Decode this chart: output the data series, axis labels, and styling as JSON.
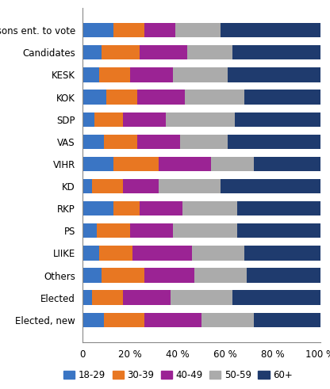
{
  "categories": [
    "Persons ent. to vote",
    "Candidates",
    "KESK",
    "KOK",
    "SDP",
    "VAS",
    "VIHR",
    "KD",
    "RKP",
    "PS",
    "LIIKE",
    "Others",
    "Elected",
    "Elected, new"
  ],
  "segments": {
    "18-29": [
      13,
      8,
      7,
      10,
      5,
      9,
      13,
      4,
      13,
      6,
      7,
      8,
      4,
      9
    ],
    "30-39": [
      13,
      16,
      13,
      13,
      12,
      14,
      19,
      13,
      11,
      14,
      14,
      18,
      13,
      17
    ],
    "40-49": [
      13,
      20,
      18,
      20,
      18,
      18,
      22,
      15,
      18,
      18,
      25,
      21,
      20,
      24
    ],
    "50-59": [
      19,
      19,
      23,
      25,
      29,
      20,
      18,
      26,
      23,
      27,
      22,
      22,
      26,
      22
    ],
    "60+": [
      42,
      37,
      39,
      32,
      36,
      39,
      28,
      42,
      35,
      35,
      32,
      31,
      37,
      28
    ]
  },
  "colors": {
    "18-29": "#3A75C4",
    "30-39": "#E87722",
    "40-49": "#9B2394",
    "50-59": "#ABABAB",
    "60+": "#1F3B6E"
  },
  "legend_labels": [
    "18-29",
    "30-39",
    "40-49",
    "50-59",
    "60+"
  ],
  "figsize": [
    4.16,
    4.91
  ],
  "dpi": 100,
  "bar_height": 0.65
}
